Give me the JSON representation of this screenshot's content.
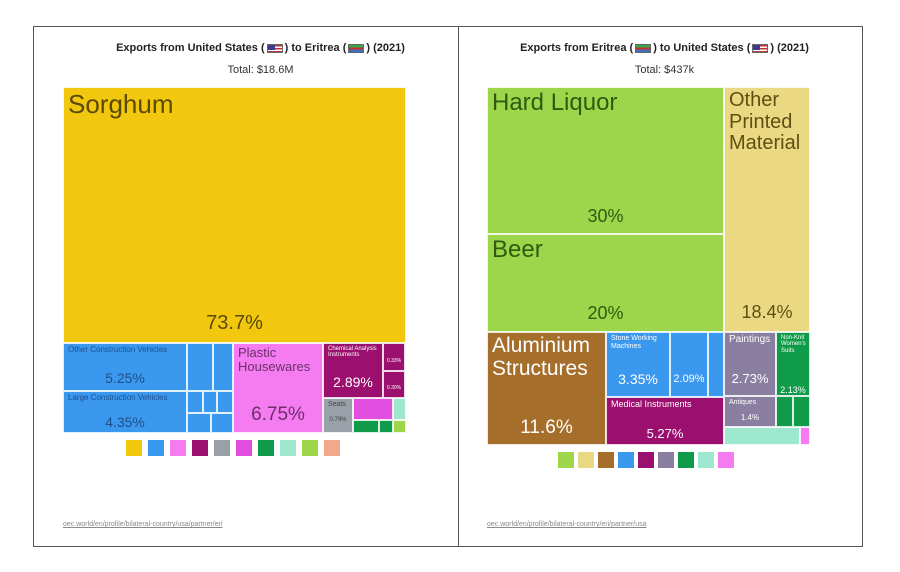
{
  "chart_data": [
    {
      "type": "treemap",
      "title": "Exports from United States (🇺🇸) to Eritrea (🇪🇷) (2021)",
      "title_parts": {
        "prefix": "Exports from United States",
        "middle": "to Eritrea",
        "suffix": "(2021)"
      },
      "total_label": "Total: $18.6M",
      "source": "oec.world/en/profile/bilateral-country/usa/partner/eri",
      "items": [
        {
          "label": "Sorghum",
          "pct": "73.7%",
          "value": 73.7,
          "color": "#f2c80f"
        },
        {
          "label": "Other Construction Vehicles",
          "pct": "5.25%",
          "value": 5.25,
          "color": "#3b98ef"
        },
        {
          "label": "Large Construction Vehicles",
          "pct": "4.35%",
          "value": 4.35,
          "color": "#3b98ef"
        },
        {
          "label": "Plastic Housewares",
          "pct": "6.75%",
          "value": 6.75,
          "color": "#f57cf0"
        },
        {
          "label": "Chemical Analysis Instruments",
          "pct": "2.89%",
          "value": 2.89,
          "color": "#9b0f6e"
        },
        {
          "label": "Seats",
          "pct": "0.79%",
          "value": 0.79,
          "color": "#9aa0a8"
        },
        {
          "label": "",
          "pct": "0.33%",
          "value": 0.33,
          "color": "#9b0f6e"
        },
        {
          "label": "",
          "pct": "0.30%",
          "value": 0.3,
          "color": "#9b0f6e"
        }
      ],
      "legend_colors": [
        "#f2c80f",
        "#3b98ef",
        "#f57cf0",
        "#9b0f6e",
        "#9aa0a8",
        "#e24fe0",
        "#0f9b4a",
        "#9fe8d0",
        "#9ed64b",
        "#f2a98a"
      ]
    },
    {
      "type": "treemap",
      "title": "Exports from Eritrea (🇪🇷) to United States (🇺🇸) (2021)",
      "title_parts": {
        "prefix": "Exports from Eritrea",
        "middle": "to United States",
        "suffix": "(2021)"
      },
      "total_label": "Total: $437k",
      "source": "oec.world/en/profile/bilateral-country/eri/partner/usa",
      "items": [
        {
          "label": "Hard Liquor",
          "pct": "30%",
          "value": 30,
          "color": "#9ed64b"
        },
        {
          "label": "Beer",
          "pct": "20%",
          "value": 20,
          "color": "#9ed64b"
        },
        {
          "label": "Other Printed Material",
          "pct": "18.4%",
          "value": 18.4,
          "color": "#ead883"
        },
        {
          "label": "Aluminium Structures",
          "pct": "11.6%",
          "value": 11.6,
          "color": "#a56e2a"
        },
        {
          "label": "Stone Working Machines",
          "pct": "3.35%",
          "value": 3.35,
          "color": "#3b98ef"
        },
        {
          "label": "",
          "pct": "2.09%",
          "value": 2.09,
          "color": "#3b98ef"
        },
        {
          "label": "Medical Instruments",
          "pct": "5.27%",
          "value": 5.27,
          "color": "#9b0f6e"
        },
        {
          "label": "Paintings",
          "pct": "2.73%",
          "value": 2.73,
          "color": "#8a7fa0"
        },
        {
          "label": "Antiques",
          "pct": "1.4%",
          "value": 1.4,
          "color": "#8a7fa0"
        },
        {
          "label": "Non-Knit Women's Suits",
          "pct": "2.13%",
          "value": 2.13,
          "color": "#0f9b4a"
        },
        {
          "label": "",
          "pct": "",
          "value": 0.9,
          "color": "#9fe8d0"
        },
        {
          "label": "",
          "pct": "",
          "value": 0.5,
          "color": "#f57cf0"
        }
      ],
      "legend_colors": [
        "#9ed64b",
        "#ead883",
        "#a56e2a",
        "#3b98ef",
        "#9b0f6e",
        "#8a7fa0",
        "#0f9b4a",
        "#9fe8d0",
        "#f57cf0"
      ]
    }
  ]
}
